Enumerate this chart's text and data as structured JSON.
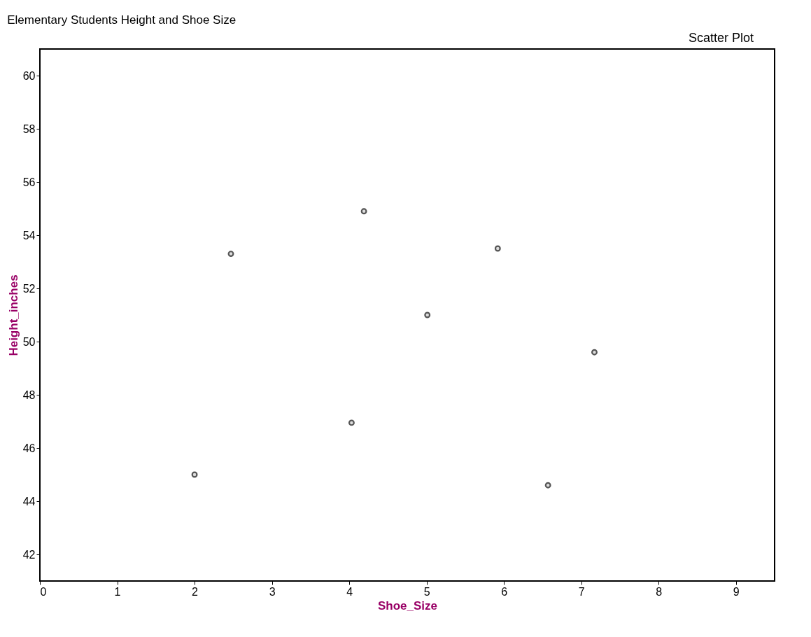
{
  "chart_data": {
    "type": "scatter",
    "title": "Elementary Students Height and Shoe Size",
    "xlabel": "Shoe_Size",
    "ylabel": "Height_inches",
    "annotations": [
      "Scatter Plot"
    ],
    "x": [
      2,
      2.47,
      4.19,
      4.03,
      5.01,
      5.92,
      6.57,
      7.17
    ],
    "series": [
      {
        "color": "#555555",
        "values": [
          45.0,
          53.3,
          54.9,
          46.95,
          51.0,
          53.5,
          44.6,
          49.6
        ]
      }
    ],
    "xlim": [
      0,
      9.5
    ],
    "xticks": [
      0,
      1,
      2,
      3,
      4,
      5,
      6,
      7,
      8,
      9
    ],
    "ylim": [
      41,
      61
    ],
    "yticks": [
      42,
      44,
      46,
      48,
      50,
      52,
      54,
      56,
      58,
      60
    ],
    "marker": "circle",
    "grid": false
  }
}
